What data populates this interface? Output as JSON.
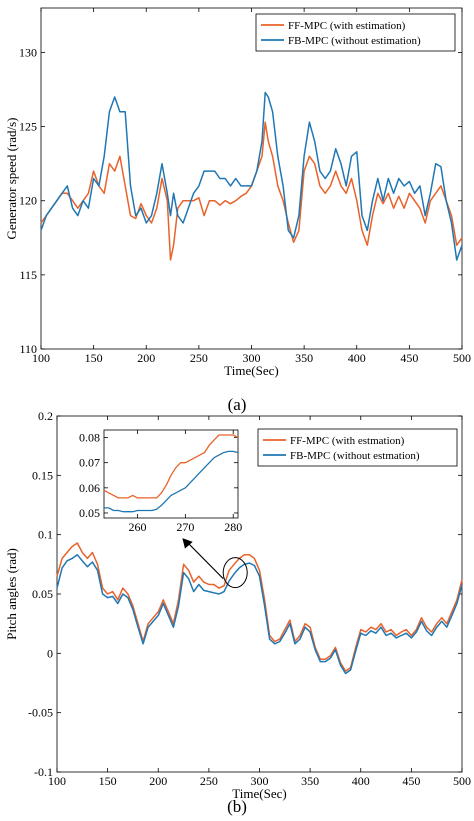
{
  "colors": {
    "ff": "#e8622a",
    "fb": "#1f77b4"
  },
  "chart_data": [
    {
      "type": "line",
      "caption": "(a)",
      "xlabel": "Time(Sec)",
      "ylabel": "Generator speed (rad/s)",
      "xlim": [
        100,
        500
      ],
      "ylim": [
        110,
        133
      ],
      "xticks": [
        100,
        150,
        200,
        250,
        300,
        350,
        400,
        450,
        500
      ],
      "yticks": [
        110,
        115,
        120,
        125,
        130
      ],
      "legend": "top-right",
      "series": [
        {
          "name": "FF-MPC (with estimation)",
          "color": "#e8622a",
          "x": [
            100,
            105,
            110,
            115,
            120,
            125,
            130,
            135,
            140,
            145,
            150,
            155,
            160,
            165,
            170,
            175,
            180,
            185,
            190,
            195,
            200,
            205,
            210,
            215,
            220,
            223,
            226,
            230,
            235,
            240,
            245,
            250,
            255,
            260,
            265,
            270,
            275,
            280,
            285,
            290,
            295,
            300,
            305,
            310,
            313,
            316,
            320,
            325,
            330,
            335,
            340,
            345,
            350,
            355,
            360,
            365,
            370,
            375,
            380,
            385,
            390,
            395,
            400,
            405,
            410,
            415,
            420,
            425,
            430,
            435,
            440,
            445,
            450,
            455,
            460,
            465,
            470,
            475,
            480,
            485,
            490,
            495,
            500
          ],
          "y": [
            118.5,
            119,
            119.5,
            120,
            120.5,
            120.5,
            120,
            119.5,
            120,
            120.5,
            122,
            121,
            120.5,
            122.5,
            122,
            123,
            121,
            119,
            118.8,
            119.8,
            119,
            118.5,
            119.5,
            121.5,
            120,
            116,
            117,
            119.5,
            120,
            120,
            120,
            120.2,
            119,
            120,
            120,
            119.7,
            120,
            119.8,
            120,
            120.3,
            120.5,
            121,
            122,
            123,
            125.3,
            124,
            123,
            121,
            120,
            118.5,
            117.2,
            118,
            122,
            123,
            122.5,
            121,
            120.5,
            121,
            122,
            121,
            120.5,
            121.5,
            120,
            118,
            117,
            119,
            120.5,
            119.8,
            120.5,
            119.5,
            120.3,
            119.5,
            120.5,
            120,
            119.5,
            118.5,
            120,
            120.5,
            121,
            120,
            119,
            117,
            117.5
          ]
        },
        {
          "name": "FB-MPC (without estimation)",
          "color": "#1f77b4",
          "x": [
            100,
            105,
            110,
            115,
            120,
            125,
            130,
            135,
            140,
            145,
            150,
            155,
            160,
            165,
            170,
            175,
            180,
            185,
            190,
            195,
            200,
            205,
            210,
            215,
            220,
            223,
            226,
            230,
            235,
            240,
            245,
            250,
            255,
            260,
            265,
            270,
            275,
            280,
            285,
            290,
            295,
            300,
            305,
            310,
            313,
            316,
            320,
            325,
            330,
            335,
            340,
            345,
            350,
            355,
            360,
            365,
            370,
            375,
            380,
            385,
            390,
            395,
            400,
            405,
            410,
            415,
            420,
            425,
            430,
            435,
            440,
            445,
            450,
            455,
            460,
            465,
            470,
            475,
            480,
            485,
            490,
            495,
            500
          ],
          "y": [
            118,
            119,
            119.5,
            120,
            120.5,
            121,
            119.5,
            119,
            120,
            119.5,
            121.5,
            121,
            123,
            126,
            127,
            126,
            126,
            121,
            119,
            119.5,
            118.5,
            119,
            120.5,
            122.5,
            120.5,
            119,
            120.5,
            119,
            118.5,
            119.5,
            120.5,
            121,
            122,
            122,
            122,
            121.5,
            121.5,
            121,
            121.5,
            121,
            121,
            121,
            122,
            124,
            127.3,
            127,
            126,
            123,
            121,
            118,
            117.5,
            119,
            123,
            125.3,
            124,
            122,
            121.5,
            122,
            123.5,
            122.5,
            121,
            123,
            123.3,
            119,
            118,
            120,
            121.5,
            120,
            121.5,
            120.5,
            121.5,
            121,
            121.3,
            120.5,
            121,
            119,
            120.5,
            122.5,
            122.3,
            120,
            118.5,
            116,
            117
          ]
        }
      ]
    },
    {
      "type": "line",
      "caption": "(b)",
      "xlabel": "Time(Sec)",
      "ylabel": "Pitch angles (rad)",
      "xlim": [
        100,
        500
      ],
      "ylim": [
        -0.1,
        0.2
      ],
      "xticks": [
        100,
        150,
        200,
        250,
        300,
        350,
        400,
        450,
        500
      ],
      "yticks": [
        -0.1,
        -0.05,
        0,
        0.05,
        0.1,
        0.15,
        0.2
      ],
      "ytick_labels": [
        "-0.1",
        "-0.05",
        "0",
        "0.05",
        "0.1",
        "0.15",
        "0.2"
      ],
      "legend": "top-right",
      "series": [
        {
          "name": "FF-MPC (with estmation)",
          "color": "#e8622a",
          "x": [
            100,
            105,
            110,
            115,
            120,
            125,
            130,
            135,
            140,
            145,
            150,
            155,
            160,
            165,
            170,
            175,
            180,
            185,
            190,
            195,
            200,
            205,
            210,
            215,
            220,
            225,
            230,
            235,
            240,
            245,
            250,
            255,
            260,
            265,
            270,
            275,
            280,
            285,
            290,
            295,
            300,
            305,
            310,
            315,
            320,
            325,
            330,
            335,
            340,
            345,
            350,
            355,
            360,
            365,
            370,
            375,
            380,
            385,
            390,
            395,
            400,
            405,
            410,
            415,
            420,
            425,
            430,
            435,
            440,
            445,
            450,
            455,
            460,
            465,
            470,
            475,
            480,
            485,
            490,
            495,
            500
          ],
          "y": [
            0.065,
            0.08,
            0.085,
            0.09,
            0.093,
            0.085,
            0.08,
            0.085,
            0.075,
            0.055,
            0.05,
            0.052,
            0.045,
            0.055,
            0.05,
            0.04,
            0.025,
            0.01,
            0.025,
            0.03,
            0.035,
            0.045,
            0.035,
            0.025,
            0.045,
            0.075,
            0.07,
            0.06,
            0.065,
            0.06,
            0.058,
            0.058,
            0.055,
            0.057,
            0.07,
            0.075,
            0.08,
            0.083,
            0.083,
            0.08,
            0.07,
            0.045,
            0.015,
            0.01,
            0.012,
            0.02,
            0.028,
            0.01,
            0.015,
            0.025,
            0.022,
            0.005,
            -0.005,
            -0.005,
            -0.002,
            0.005,
            -0.008,
            -0.015,
            -0.012,
            0.005,
            0.02,
            0.018,
            0.022,
            0.02,
            0.025,
            0.018,
            0.02,
            0.015,
            0.018,
            0.02,
            0.015,
            0.02,
            0.03,
            0.022,
            0.018,
            0.025,
            0.03,
            0.025,
            0.035,
            0.045,
            0.062
          ]
        },
        {
          "name": "FB-MPC (without estmation)",
          "color": "#1f77b4",
          "x": [
            100,
            105,
            110,
            115,
            120,
            125,
            130,
            135,
            140,
            145,
            150,
            155,
            160,
            165,
            170,
            175,
            180,
            185,
            190,
            195,
            200,
            205,
            210,
            215,
            220,
            225,
            230,
            235,
            240,
            245,
            250,
            255,
            260,
            265,
            270,
            275,
            280,
            285,
            290,
            295,
            300,
            305,
            310,
            315,
            320,
            325,
            330,
            335,
            340,
            345,
            350,
            355,
            360,
            365,
            370,
            375,
            380,
            385,
            390,
            395,
            400,
            405,
            410,
            415,
            420,
            425,
            430,
            435,
            440,
            445,
            450,
            455,
            460,
            465,
            470,
            475,
            480,
            485,
            490,
            495,
            500
          ],
          "y": [
            0.055,
            0.072,
            0.078,
            0.08,
            0.083,
            0.078,
            0.073,
            0.077,
            0.07,
            0.05,
            0.047,
            0.048,
            0.042,
            0.05,
            0.047,
            0.037,
            0.022,
            0.008,
            0.022,
            0.027,
            0.032,
            0.042,
            0.032,
            0.022,
            0.04,
            0.068,
            0.063,
            0.052,
            0.058,
            0.053,
            0.052,
            0.051,
            0.05,
            0.052,
            0.061,
            0.067,
            0.072,
            0.075,
            0.076,
            0.074,
            0.065,
            0.04,
            0.012,
            0.008,
            0.01,
            0.017,
            0.025,
            0.008,
            0.012,
            0.022,
            0.018,
            0.003,
            -0.007,
            -0.007,
            -0.004,
            0.003,
            -0.01,
            -0.017,
            -0.014,
            0.002,
            0.017,
            0.015,
            0.019,
            0.017,
            0.022,
            0.015,
            0.017,
            0.013,
            0.015,
            0.017,
            0.013,
            0.018,
            0.027,
            0.019,
            0.015,
            0.022,
            0.027,
            0.022,
            0.032,
            0.042,
            0.058
          ]
        }
      ],
      "inset": {
        "xlim": [
          253,
          281
        ],
        "ylim": [
          0.048,
          0.083
        ],
        "xticks": [
          260,
          270,
          280
        ],
        "yticks": [
          0.05,
          0.06,
          0.07,
          0.08
        ],
        "ytick_labels": [
          "0.05",
          "0.06",
          "0.07",
          "0.08"
        ],
        "series": [
          {
            "color": "#e8622a",
            "x": [
              253,
              254,
              255,
              256,
              257,
              258,
              259,
              260,
              261,
              262,
              263,
              264,
              265,
              266,
              267,
              268,
              269,
              270,
              271,
              272,
              273,
              274,
              275,
              276,
              277,
              278,
              279,
              280,
              281
            ],
            "y": [
              0.059,
              0.058,
              0.057,
              0.056,
              0.056,
              0.056,
              0.057,
              0.056,
              0.056,
              0.056,
              0.056,
              0.056,
              0.058,
              0.061,
              0.065,
              0.068,
              0.07,
              0.07,
              0.071,
              0.072,
              0.073,
              0.074,
              0.077,
              0.079,
              0.081,
              0.081,
              0.081,
              0.081,
              0.08
            ]
          },
          {
            "color": "#1f77b4",
            "x": [
              253,
              254,
              255,
              256,
              257,
              258,
              259,
              260,
              261,
              262,
              263,
              264,
              265,
              266,
              267,
              268,
              269,
              270,
              271,
              272,
              273,
              274,
              275,
              276,
              277,
              278,
              279,
              280,
              281
            ],
            "y": [
              0.052,
              0.052,
              0.051,
              0.051,
              0.0505,
              0.0505,
              0.0505,
              0.051,
              0.051,
              0.051,
              0.051,
              0.0515,
              0.053,
              0.055,
              0.057,
              0.058,
              0.059,
              0.06,
              0.062,
              0.064,
              0.066,
              0.068,
              0.07,
              0.072,
              0.073,
              0.074,
              0.0745,
              0.0745,
              0.074
            ]
          }
        ]
      }
    }
  ]
}
